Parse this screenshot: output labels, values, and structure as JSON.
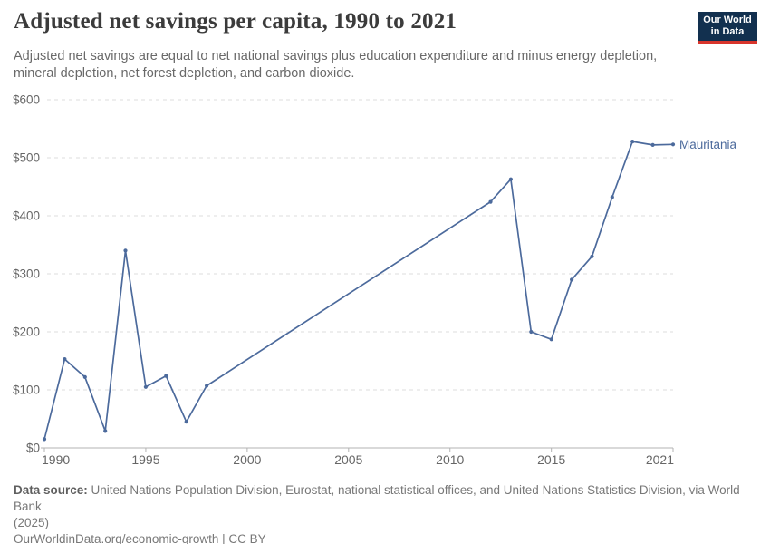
{
  "header": {
    "title": "Adjusted net savings per capita, 1990 to 2021",
    "subtitle_lines": [
      "Adjusted net savings are equal to net national savings plus education expenditure and minus energy depletion,",
      "mineral depletion, net forest depletion, and carbon dioxide."
    ],
    "logo": {
      "line1": "Our World",
      "line2": "in Data"
    }
  },
  "chart_data": {
    "type": "line",
    "title": "Adjusted net savings per capita, 1990 to 2021",
    "xlabel": "",
    "ylabel": "",
    "xlim": [
      1990,
      2021
    ],
    "ylim": [
      0,
      600
    ],
    "grid": "horizontal-dashed",
    "legend_position": "label-at-line-end",
    "x_ticks": [
      {
        "value": 1990,
        "label": "1990"
      },
      {
        "value": 1995,
        "label": "1995"
      },
      {
        "value": 2000,
        "label": "2000"
      },
      {
        "value": 2005,
        "label": "2005"
      },
      {
        "value": 2010,
        "label": "2010"
      },
      {
        "value": 2015,
        "label": "2015"
      },
      {
        "value": 2021,
        "label": "2021"
      }
    ],
    "y_ticks": [
      {
        "value": 0,
        "label": "$0"
      },
      {
        "value": 100,
        "label": "$100"
      },
      {
        "value": 200,
        "label": "$200"
      },
      {
        "value": 300,
        "label": "$300"
      },
      {
        "value": 400,
        "label": "$400"
      },
      {
        "value": 500,
        "label": "$500"
      },
      {
        "value": 600,
        "label": "$600"
      }
    ],
    "series": [
      {
        "name": "Mauritania",
        "color": "#4C6A9C",
        "points": [
          [
            1990,
            15
          ],
          [
            1991,
            153
          ],
          [
            1992,
            122
          ],
          [
            1993,
            29
          ],
          [
            1994,
            340
          ],
          [
            1995,
            105
          ],
          [
            1996,
            124
          ],
          [
            1997,
            45
          ],
          [
            1998,
            107
          ],
          [
            2012,
            424
          ],
          [
            2013,
            463
          ],
          [
            2014,
            200
          ],
          [
            2015,
            187
          ],
          [
            2016,
            290
          ],
          [
            2017,
            330
          ],
          [
            2018,
            432
          ],
          [
            2019,
            528
          ],
          [
            2020,
            522
          ],
          [
            2021,
            523
          ]
        ]
      }
    ]
  },
  "footer": {
    "source_label": "Data source:",
    "source_lines": [
      "United Nations Population Division, Eurostat, national statistical offices, and United Nations Statistics Division, via World Bank",
      "(2025)"
    ],
    "citation": "OurWorldinData.org/economic-growth | CC BY"
  },
  "colors": {
    "accent": "#4C6A9C",
    "grid": "#dcdcdc",
    "axis": "#b3b3b3",
    "tick_label": "#666666",
    "logo_bg": "#12304f",
    "logo_accent": "#d8352c"
  }
}
